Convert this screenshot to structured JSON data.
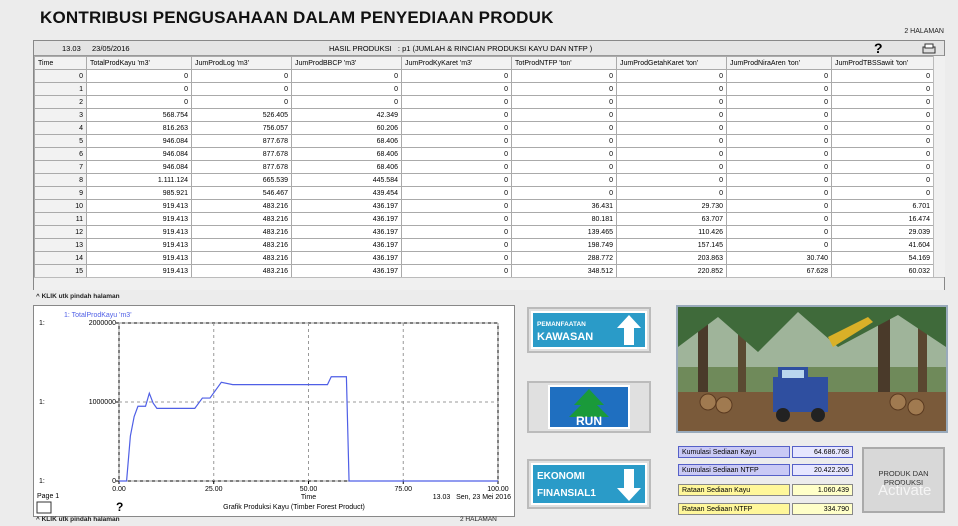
{
  "header": {
    "title": "KONTRIBUSI PENGUSAHAAN DALAM PENYEDIAAN PRODUK",
    "page_label": "2 HALAMAN"
  },
  "table": {
    "time": "13.03",
    "date": "23/05/2016",
    "caption": "HASIL PRODUKSI   : p1 (JUMLAH & RINCIAN PRODUKSI KAYU DAN NTFP )",
    "help": "?",
    "columns": [
      "Time",
      "TotalProdKayu 'm3'",
      "JumProdLog 'm3'",
      "JumProdBBCP 'm3'",
      "JumProdKyKaret 'm3'",
      "TotProdNTFP 'ton'",
      "JumProdGetahKaret 'ton'",
      "JumProdNiraAren 'ton'",
      "JumProdTBSSawit 'ton'"
    ],
    "rows": [
      [
        "0",
        "0",
        "0",
        "0",
        "0",
        "0",
        "0",
        "0",
        "0"
      ],
      [
        "1",
        "0",
        "0",
        "0",
        "0",
        "0",
        "0",
        "0",
        "0"
      ],
      [
        "2",
        "0",
        "0",
        "0",
        "0",
        "0",
        "0",
        "0",
        "0"
      ],
      [
        "3",
        "568.754",
        "526.405",
        "42.349",
        "0",
        "0",
        "0",
        "0",
        "0"
      ],
      [
        "4",
        "816.263",
        "756.057",
        "60.206",
        "0",
        "0",
        "0",
        "0",
        "0"
      ],
      [
        "5",
        "946.084",
        "877.678",
        "68.406",
        "0",
        "0",
        "0",
        "0",
        "0"
      ],
      [
        "6",
        "946.084",
        "877.678",
        "68.406",
        "0",
        "0",
        "0",
        "0",
        "0"
      ],
      [
        "7",
        "946.084",
        "877.678",
        "68.406",
        "0",
        "0",
        "0",
        "0",
        "0"
      ],
      [
        "8",
        "1.111.124",
        "665.539",
        "445.584",
        "0",
        "0",
        "0",
        "0",
        "0"
      ],
      [
        "9",
        "985.921",
        "546.467",
        "439.454",
        "0",
        "0",
        "0",
        "0",
        "0"
      ],
      [
        "10",
        "919.413",
        "483.216",
        "436.197",
        "0",
        "36.431",
        "29.730",
        "0",
        "6.701"
      ],
      [
        "11",
        "919.413",
        "483.216",
        "436.197",
        "0",
        "80.181",
        "63.707",
        "0",
        "16.474"
      ],
      [
        "12",
        "919.413",
        "483.216",
        "436.197",
        "0",
        "139.465",
        "110.426",
        "0",
        "29.039"
      ],
      [
        "13",
        "919.413",
        "483.216",
        "436.197",
        "0",
        "198.749",
        "157.145",
        "0",
        "41.604"
      ],
      [
        "14",
        "919.413",
        "483.216",
        "436.197",
        "0",
        "288.772",
        "203.863",
        "30.740",
        "54.169"
      ],
      [
        "15",
        "919.413",
        "483.216",
        "436.197",
        "0",
        "348.512",
        "220.852",
        "67.628",
        "60.032"
      ]
    ]
  },
  "nav_hint": "^ KLIK utk pindah halaman",
  "graph": {
    "type": "line",
    "series_label": "1: TotalProdKayu 'm3'",
    "axis_prefix": "1:",
    "x_label": "Time",
    "title": "Grafik Produksi Kayu (Timber Forest Product)",
    "page": "Page 1",
    "timestamp": "13.03   Sen, 23 Mei 2016",
    "help": "?",
    "color": "#4f5fe6",
    "x": [
      0,
      2,
      3,
      4,
      5,
      7,
      8,
      9,
      10,
      20,
      22,
      24,
      27,
      30,
      40,
      50,
      55,
      56,
      60,
      60.7,
      75,
      100
    ],
    "values": [
      0,
      0,
      568754,
      816263,
      946084,
      946084,
      1111124,
      985921,
      919413,
      919413,
      1050000,
      1050000,
      1250000,
      1220000,
      1220000,
      1220000,
      1220000,
      1320000,
      1320000,
      0,
      0,
      0
    ],
    "xlim": [
      0,
      100
    ],
    "ylim": [
      0,
      2000000
    ],
    "xticks": [
      {
        "value": 0,
        "label": "0.00"
      },
      {
        "value": 25,
        "label": "25.00"
      },
      {
        "value": 50,
        "label": "50.00"
      },
      {
        "value": 75,
        "label": "75.00"
      },
      {
        "value": 100,
        "label": "100.00"
      }
    ],
    "yticks": [
      0,
      1000000,
      2000000
    ],
    "grid": true
  },
  "buttons": {
    "kawasan": [
      "PEMANFAATAN",
      "KAWASAN"
    ],
    "run": "RUN",
    "ekonomi": [
      "EKONOMI",
      "FINANSIAL1"
    ],
    "produk": [
      "PRODUK DAN",
      "PRODUKSI"
    ]
  },
  "indicators": [
    {
      "label": "Kumulasi Sediaan Kayu",
      "value": "64.686.768"
    },
    {
      "label": "Kumulasi Sediaan NTFP",
      "value": "20.422.206"
    },
    {
      "label": "Rataan Sediaan Kayu",
      "value": "1.060.439"
    },
    {
      "label": "Rataan Sediaan NTFP",
      "value": "334.790"
    }
  ],
  "footer": {
    "hint": "^ KLIK utk pindah halaman",
    "page_label": "2 HALAMAN"
  },
  "watermark": "Activate"
}
